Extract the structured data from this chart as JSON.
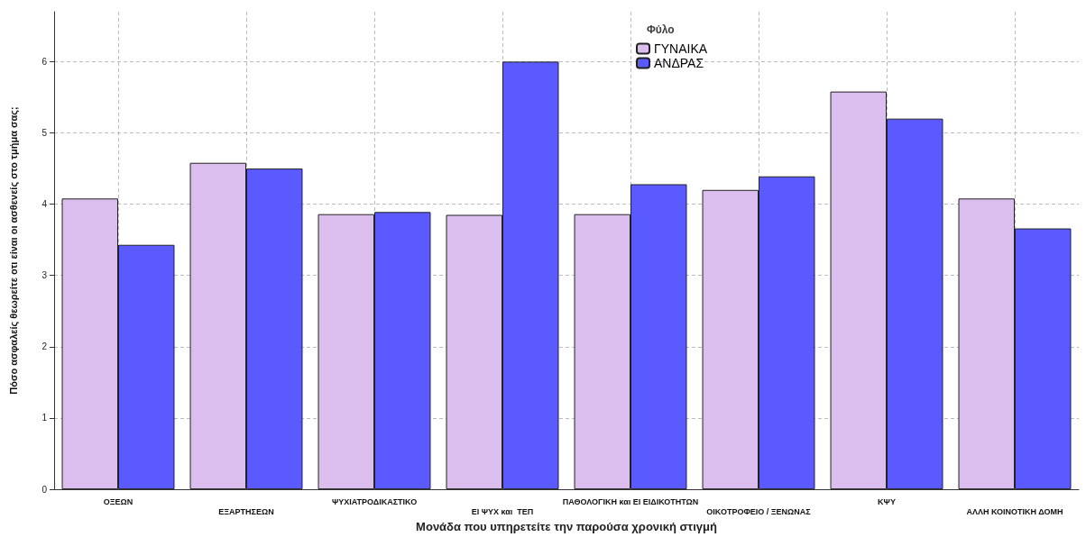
{
  "chart_data": {
    "type": "bar",
    "xlabel": "Μονάδα που υπηρετείτε την παρούσα χρονική στιγμή",
    "ylabel": "Πόσο ασφαλείς θεωρείτε οτι είναι οι ασθενείς στο τμήμα σας;",
    "legend_title": "Φύλο",
    "categories": [
      "ΟΞΕΩΝ",
      "ΕΞΑΡΤΗΣΕΩΝ",
      "ΨΥΧΙΑΤΡΟΔΙΚΑΣΤΙΚΟ",
      "ΕΙ ΨΥΧ και  ΤΕΠ",
      "ΠΑΘΟΛΟΓΙΚΗ και ΕΙ ΕΙΔΙΚΟΤΗΤΩΝ",
      "ΟΙΚΟΤΡΟΦΕΙΟ / ΞΕΝΩΝΑΣ",
      "ΚΨΥ",
      "ΑΛΛΗ ΚΟΙΝΟΤΙΚΗ ΔΟΜΗ"
    ],
    "series": [
      {
        "name": "ΓΥΝΑΙΚΑ",
        "color": "#dbbdee",
        "values": [
          4.08,
          4.58,
          3.86,
          3.85,
          3.86,
          4.2,
          5.58,
          4.08
        ]
      },
      {
        "name": "ΑΝΔΡΑΣ",
        "color": "#5a5aff",
        "values": [
          3.43,
          4.5,
          3.89,
          6.0,
          4.28,
          4.39,
          5.2,
          3.66
        ]
      }
    ],
    "ylim": [
      0,
      6.7
    ],
    "yticks": [
      0,
      1,
      2,
      3,
      4,
      5,
      6
    ],
    "grid": true,
    "legend": "top"
  }
}
